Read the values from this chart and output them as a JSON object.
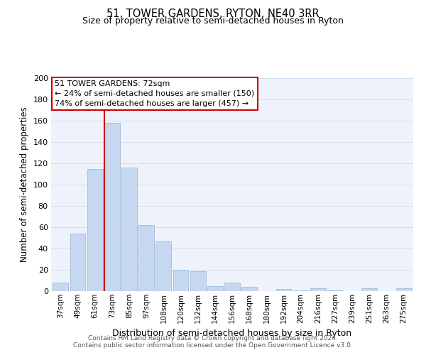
{
  "title": "51, TOWER GARDENS, RYTON, NE40 3RR",
  "subtitle": "Size of property relative to semi-detached houses in Ryton",
  "xlabel": "Distribution of semi-detached houses by size in Ryton",
  "ylabel": "Number of semi-detached properties",
  "bin_labels": [
    "37sqm",
    "49sqm",
    "61sqm",
    "73sqm",
    "85sqm",
    "97sqm",
    "108sqm",
    "120sqm",
    "132sqm",
    "144sqm",
    "156sqm",
    "168sqm",
    "180sqm",
    "192sqm",
    "204sqm",
    "216sqm",
    "227sqm",
    "239sqm",
    "251sqm",
    "263sqm",
    "275sqm"
  ],
  "bar_values": [
    8,
    54,
    115,
    158,
    116,
    62,
    47,
    20,
    19,
    5,
    8,
    4,
    0,
    2,
    1,
    3,
    1,
    0,
    3,
    0,
    3
  ],
  "bar_color": "#c5d8f0",
  "bar_edge_color": "#a0bcd8",
  "highlight_line_color": "#cc0000",
  "ylim": [
    0,
    200
  ],
  "yticks": [
    0,
    20,
    40,
    60,
    80,
    100,
    120,
    140,
    160,
    180,
    200
  ],
  "annotation_title": "51 TOWER GARDENS: 72sqm",
  "annotation_line1": "← 24% of semi-detached houses are smaller (150)",
  "annotation_line2": "74% of semi-detached houses are larger (457) →",
  "annotation_box_color": "#ffffff",
  "annotation_box_edge": "#cc0000",
  "footer_line1": "Contains HM Land Registry data © Crown copyright and database right 2024.",
  "footer_line2": "Contains public sector information licensed under the Open Government Licence v3.0.",
  "grid_color": "#d0dff0",
  "background_color": "#eef3fb"
}
